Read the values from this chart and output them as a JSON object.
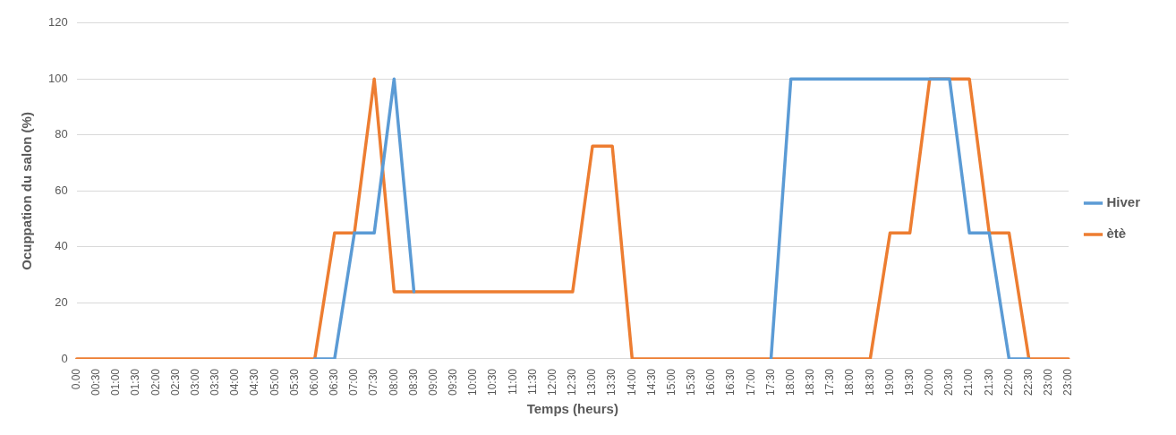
{
  "chart_data": {
    "type": "line",
    "xlabel": "Temps (heurs)",
    "ylabel": "Ocuppation du salon (%)",
    "categories": [
      "0.00",
      "00:30",
      "01:00",
      "01:30",
      "02:00",
      "02:30",
      "03:00",
      "03:30",
      "04:00",
      "04:30",
      "05:00",
      "05:30",
      "06:00",
      "06:30",
      "07:00",
      "07:30",
      "08:00",
      "08:30",
      "09:00",
      "09:30",
      "10:00",
      "10:30",
      "11:00",
      "11:30",
      "12:00",
      "12:30",
      "13:00",
      "13:30",
      "14:00",
      "14:30",
      "15:00",
      "15:30",
      "16:00",
      "16:30",
      "17:00",
      "17:30",
      "18:00",
      "18:30",
      "17:30",
      "18:00",
      "18:30",
      "19:00",
      "19:30",
      "20:00",
      "20:30",
      "21:00",
      "21:30",
      "22:00",
      "22:30",
      "23:00",
      "23:00"
    ],
    "series": [
      {
        "name": "Hiver",
        "color": "#5b9bd5",
        "values": [
          null,
          null,
          null,
          null,
          null,
          null,
          null,
          null,
          null,
          null,
          null,
          null,
          0,
          0,
          45,
          45,
          100,
          24,
          null,
          null,
          null,
          null,
          null,
          null,
          null,
          null,
          null,
          null,
          null,
          null,
          null,
          null,
          null,
          null,
          null,
          0,
          100,
          100,
          100,
          100,
          100,
          100,
          100,
          100,
          100,
          45,
          45,
          0,
          0,
          null,
          null
        ]
      },
      {
        "name": "ètè",
        "color": "#ed7d31",
        "values": [
          0,
          0,
          0,
          0,
          0,
          0,
          0,
          0,
          0,
          0,
          0,
          0,
          0,
          45,
          45,
          100,
          24,
          24,
          24,
          24,
          24,
          24,
          24,
          24,
          24,
          24,
          76,
          76,
          0,
          0,
          0,
          0,
          0,
          0,
          0,
          0,
          0,
          0,
          0,
          0,
          0,
          45,
          45,
          100,
          100,
          100,
          45,
          45,
          0,
          0,
          0
        ]
      }
    ],
    "ylim": [
      0,
      120
    ],
    "yticks": [
      0,
      20,
      40,
      60,
      80,
      100,
      120
    ],
    "grid": "y",
    "legend": "right",
    "marker": "none",
    "line_style": "solid"
  }
}
